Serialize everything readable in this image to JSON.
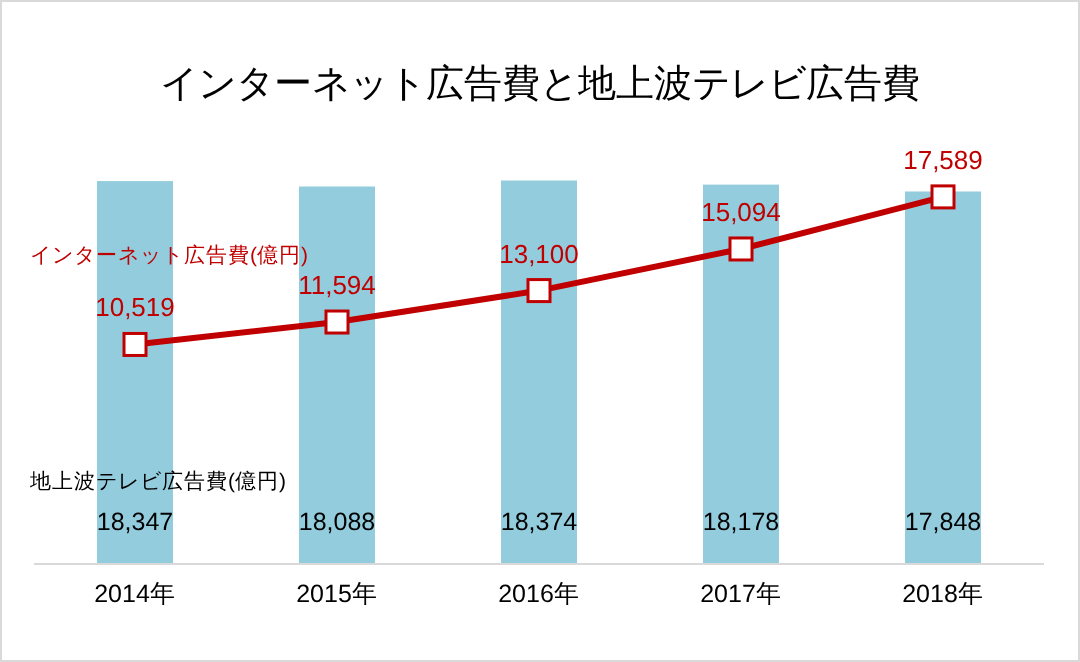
{
  "chart_data": {
    "type": "bar",
    "title": "インターネット広告費と地上波テレビ広告費",
    "categories": [
      "2014年",
      "2015年",
      "2016年",
      "2017年",
      "2018年"
    ],
    "series": [
      {
        "name": "地上波テレビ広告費(億円)",
        "color": "#93cddd",
        "values": [
          18347,
          18088,
          18374,
          18178,
          17848
        ],
        "value_labels": [
          "18,347",
          "18,088",
          "18,374",
          "18,178",
          "17,848"
        ]
      },
      {
        "name": "インターネット広告費(億円)",
        "type": "line",
        "color": "#c00000",
        "values": [
          10519,
          11594,
          13100,
          15094,
          17589
        ],
        "value_labels": [
          "10,519",
          "11,594",
          "13,100",
          "15,094",
          "17,589"
        ]
      }
    ],
    "tick_labels": "x",
    "legend": false,
    "grid": false,
    "marker": "square"
  }
}
